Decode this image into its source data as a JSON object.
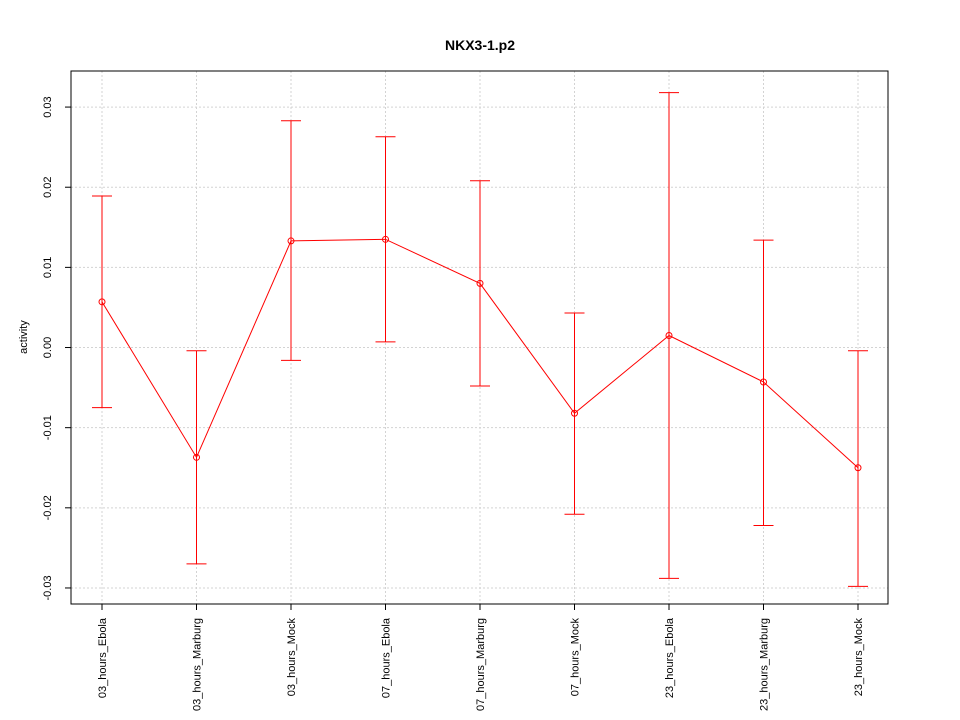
{
  "chart_data": {
    "type": "line",
    "title": "NKX3-1.p2",
    "xlabel": "",
    "ylabel": "activity",
    "ylim": [
      -0.032,
      0.0345
    ],
    "yticks": [
      -0.03,
      -0.02,
      -0.01,
      0.0,
      0.01,
      0.02,
      0.03
    ],
    "ytick_labels": [
      "-0.03",
      "-0.02",
      "-0.01",
      "0.00",
      "0.01",
      "0.02",
      "0.03"
    ],
    "grid": true,
    "color": "#ff0000",
    "categories": [
      "03_hours_Ebola",
      "03_hours_Marburg",
      "03_hours_Mock",
      "07_hours_Ebola",
      "07_hours_Marburg",
      "07_hours_Mock",
      "23_hours_Ebola",
      "23_hours_Marburg",
      "23_hours_Mock"
    ],
    "series": [
      {
        "values": [
          0.0057,
          -0.0137,
          0.0133,
          0.0135,
          0.008,
          -0.0082,
          0.0015,
          -0.0043,
          -0.015
        ],
        "upper": [
          0.0189,
          -0.0004,
          0.0283,
          0.0263,
          0.0208,
          0.0043,
          0.0318,
          0.0134,
          -0.0004
        ],
        "lower": [
          -0.0075,
          -0.027,
          -0.0016,
          0.0007,
          -0.0048,
          -0.0208,
          -0.0288,
          -0.0222,
          -0.0298
        ]
      }
    ]
  }
}
